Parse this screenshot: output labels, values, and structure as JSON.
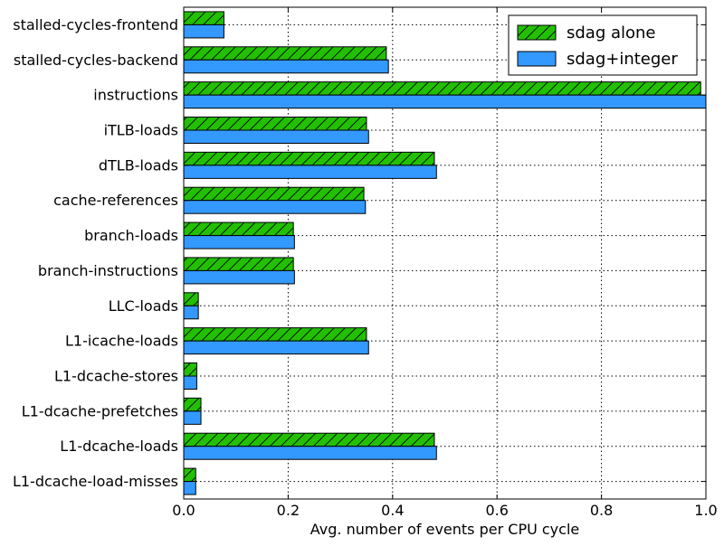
{
  "chart_data": {
    "type": "bar",
    "orientation": "horizontal",
    "categories": [
      "stalled-cycles-frontend",
      "stalled-cycles-backend",
      "instructions",
      "iTLB-loads",
      "dTLB-loads",
      "cache-references",
      "branch-loads",
      "branch-instructions",
      "LLC-loads",
      "L1-icache-loads",
      "L1-dcache-stores",
      "L1-dcache-prefetches",
      "L1-dcache-loads",
      "L1-dcache-load-misses"
    ],
    "series": [
      {
        "name": "sdag alone",
        "color": "#22c000",
        "hatch": true,
        "values": [
          0.077,
          0.388,
          0.99,
          0.35,
          0.48,
          0.345,
          0.21,
          0.21,
          0.028,
          0.35,
          0.025,
          0.033,
          0.48,
          0.023
        ]
      },
      {
        "name": "sdag+integer",
        "color": "#3399ff",
        "hatch": false,
        "values": [
          0.077,
          0.392,
          1.0,
          0.354,
          0.484,
          0.348,
          0.212,
          0.212,
          0.028,
          0.354,
          0.025,
          0.033,
          0.484,
          0.023
        ]
      }
    ],
    "xlabel": "Avg. number of events per CPU cycle",
    "ylabel": "",
    "xlim": [
      0,
      1.0
    ],
    "xticks": [
      0.0,
      0.2,
      0.4,
      0.6,
      0.8,
      1.0
    ],
    "xtick_labels": [
      "0.0",
      "0.2",
      "0.4",
      "0.6",
      "0.8",
      "1.0"
    ],
    "grid": true,
    "legend_position": "top-right"
  }
}
